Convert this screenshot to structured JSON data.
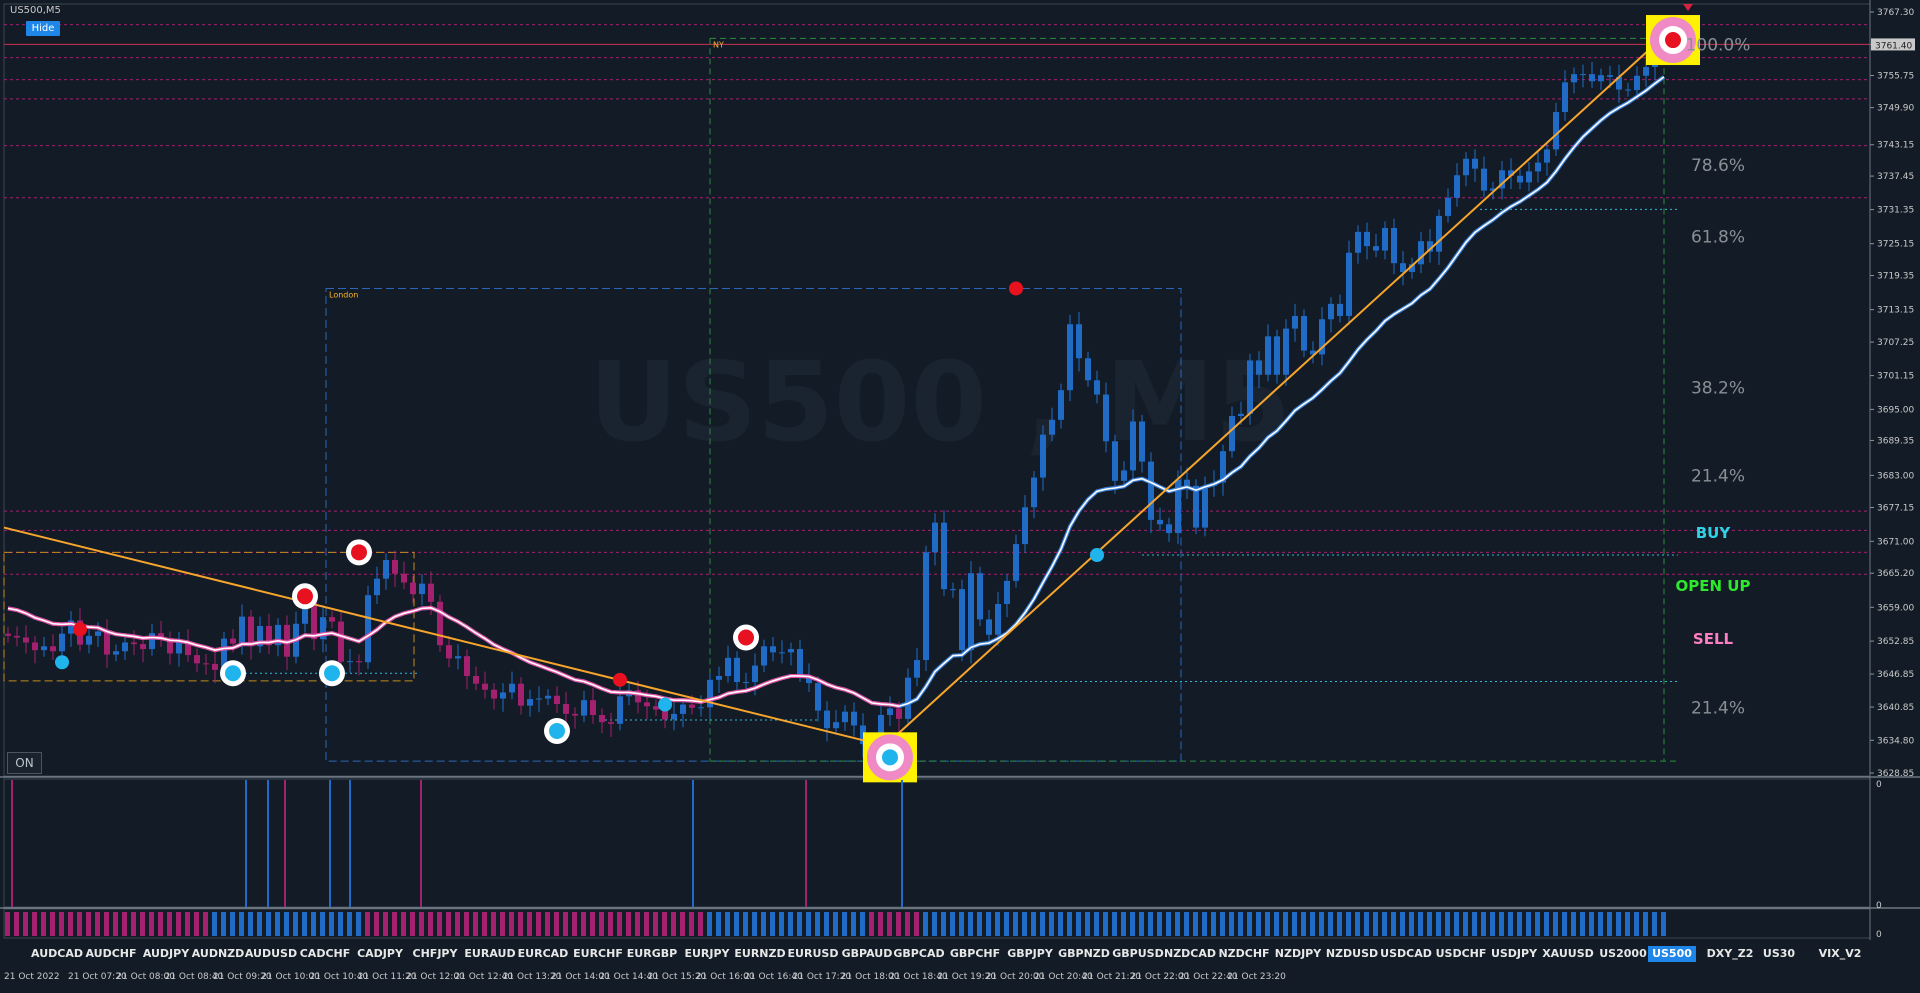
{
  "symbol_title": "US500,M5",
  "hide_label": "Hide",
  "on_label": "ON",
  "watermark": "US500 , M5",
  "session_labels": {
    "london": "London",
    "ny": "NY"
  },
  "current_price": "3761.40",
  "price_scale": [
    "3767.30",
    "3761.40",
    "3755.75",
    "3749.90",
    "3743.15",
    "3737.45",
    "3731.35",
    "3725.15",
    "3719.35",
    "3713.15",
    "3707.25",
    "3701.15",
    "3695.00",
    "3689.35",
    "3683.00",
    "3677.15",
    "3671.00",
    "3665.20",
    "3659.00",
    "3652.85",
    "3646.85",
    "3640.85",
    "3634.80",
    "3628.85"
  ],
  "fib_levels": [
    "100.0%",
    "78.6%",
    "61.8%",
    "38.2%",
    "21.4%",
    "21.4%"
  ],
  "signal_labels": {
    "buy": "BUY",
    "open_up": "OPEN UP",
    "sell": "SELL"
  },
  "sub_scale": [
    "0",
    "0",
    "0"
  ],
  "symbols": [
    "AUDCAD",
    "AUDCHF",
    "AUDJPY",
    "AUDNZD",
    "AUDUSD",
    "CADCHF",
    "CADJPY",
    "CHFJPY",
    "EURAUD",
    "EURCAD",
    "EURCHF",
    "EURGBP",
    "EURJPY",
    "EURNZD",
    "EURUSD",
    "GBPAUD",
    "GBPCAD",
    "GBPCHF",
    "GBPJPY",
    "GBPNZD",
    "GBPUSD",
    "NZDCAD",
    "NZDCHF",
    "NZDJPY",
    "NZDUSD",
    "USDCAD",
    "USDCHF",
    "USDJPY",
    "XAUUSD",
    "US2000",
    "US500",
    "DXY_Z2",
    "US30",
    "VIX_V2"
  ],
  "active_symbol": "US500",
  "time_labels": [
    "21 Oct 2022",
    "21 Oct 07:20",
    "21 Oct 08:00",
    "21 Oct 08:40",
    "21 Oct 09:20",
    "21 Oct 10:00",
    "21 Oct 10:40",
    "21 Oct 11:20",
    "21 Oct 12:00",
    "21 Oct 12:40",
    "21 Oct 13:20",
    "21 Oct 14:00",
    "21 Oct 14:40",
    "21 Oct 15:20",
    "21 Oct 16:00",
    "21 Oct 16:40",
    "21 Oct 17:20",
    "21 Oct 18:00",
    "21 Oct 18:40",
    "21 Oct 19:20",
    "21 Oct 20:00",
    "21 Oct 20:40",
    "21 Oct 21:20",
    "21 Oct 22:00",
    "21 Oct 22:40",
    "21 Oct 23:20"
  ],
  "colors": {
    "bull": "#1f6bc6",
    "bear": "#a3216f",
    "trendline": "#f7a52c",
    "buy_text": "#2fd3e8",
    "open_up_text": "#2ee82e",
    "sell_text": "#ff7ec4",
    "active_tab": "#1e86e8",
    "target_box": "#fff200"
  },
  "chart_data": {
    "type": "candlestick",
    "title": "US500,M5",
    "ylim": [
      3628.85,
      3767.3
    ],
    "closes": [
      3653.8,
      3653.5,
      3652.6,
      3651.2,
      3651.9,
      3651.0,
      3654.2,
      3656.6,
      3652.2,
      3653.8,
      3654.6,
      3650.4,
      3651.0,
      3652.6,
      3652.3,
      3651.4,
      3654.3,
      3653.4,
      3650.6,
      3652.8,
      3650.3,
      3648.8,
      3648.7,
      3647.6,
      3653.3,
      3652.4,
      3657.3,
      3651.9,
      3655.6,
      3652.1,
      3655.8,
      3650.0,
      3656.0,
      3659.9,
      3653.2,
      3657.2,
      3656.4,
      3649.1,
      3649.2,
      3649.0,
      3661.2,
      3664.2,
      3667.6,
      3665.1,
      3663.5,
      3661.4,
      3663.3,
      3660.0,
      3652.1,
      3649.7,
      3650.1,
      3646.5,
      3645.1,
      3644.0,
      3642.4,
      3643.5,
      3645.1,
      3641.1,
      3642.3,
      3642.4,
      3642.9,
      3641.4,
      3639.6,
      3639.3,
      3642.1,
      3639.4,
      3638.1,
      3637.8,
      3642.8,
      3643.9,
      3641.7,
      3641.0,
      3640.4,
      3638.6,
      3639.6,
      3641.3,
      3640.7,
      3640.8,
      3645.8,
      3646.5,
      3649.8,
      3645.4,
      3645.4,
      3648.4,
      3651.9,
      3650.8,
      3650.8,
      3651.4,
      3646.6,
      3645.2,
      3640.2,
      3637.0,
      3638.1,
      3640.0,
      3637.5,
      3634.1,
      3633.7,
      3639.4,
      3640.6,
      3638.7,
      3646.2,
      3649.4,
      3669.0,
      3674.4,
      3662.3,
      3662.3,
      3651.2,
      3665.2,
      3656.8,
      3654.0,
      3659.6,
      3663.8,
      3670.5,
      3677.2,
      3682.6,
      3690.4,
      3693.1,
      3698.5,
      3710.5,
      3704.3,
      3700.3,
      3697.7,
      3689.2,
      3682.0,
      3683.9,
      3692.8,
      3685.5,
      3674.9,
      3674.1,
      3672.5,
      3682.2,
      3681.1,
      3673.5,
      3681.1,
      3681.7,
      3687.4,
      3693.8,
      3694.2,
      3703.9,
      3701.3,
      3708.3,
      3701.3,
      3709.7,
      3712.0,
      3705.7,
      3705.0,
      3711.4,
      3714.2,
      3712.0,
      3723.5,
      3727.3,
      3724.7,
      3723.9,
      3728.0,
      3721.6,
      3720.0,
      3721.4,
      3725.6,
      3723.7,
      3730.2,
      3733.5,
      3737.6,
      3740.6,
      3738.8,
      3734.8,
      3735.2,
      3738.5,
      3737.5,
      3736.3,
      3738.3,
      3739.9,
      3742.3,
      3749.1,
      3754.5,
      3756.0,
      3756.0,
      3754.7,
      3755.8,
      3755.5,
      3753.2,
      3753.1,
      3755.7,
      3757.3,
      3760.6,
      3761.6
    ],
    "ma_line": [
      3658.8,
      3658.5,
      3657.9,
      3657.1,
      3656.6,
      3656.0,
      3655.9,
      3656.0,
      3655.6,
      3655.4,
      3655.3,
      3654.6,
      3654.1,
      3653.9,
      3653.7,
      3653.4,
      3653.5,
      3653.4,
      3653.0,
      3652.9,
      3652.6,
      3652.1,
      3651.7,
      3651.2,
      3651.5,
      3651.6,
      3652.3,
      3652.3,
      3652.6,
      3652.6,
      3652.9,
      3652.6,
      3653.1,
      3653.9,
      3653.8,
      3654.1,
      3654.3,
      3653.8,
      3653.3,
      3652.8,
      3653.8,
      3654.9,
      3656.3,
      3657.3,
      3657.9,
      3658.3,
      3658.8,
      3658.9,
      3658.2,
      3657.2,
      3656.4,
      3655.4,
      3654.3,
      3653.3,
      3652.2,
      3651.4,
      3650.7,
      3649.8,
      3649.0,
      3648.4,
      3647.8,
      3647.2,
      3646.5,
      3645.8,
      3645.5,
      3644.9,
      3644.2,
      3643.6,
      3643.5,
      3643.5,
      3643.3,
      3643.0,
      3642.8,
      3642.4,
      3642.1,
      3642.1,
      3642.0,
      3641.8,
      3642.2,
      3642.6,
      3643.3,
      3643.6,
      3643.8,
      3644.3,
      3645.0,
      3645.6,
      3646.1,
      3646.5,
      3646.5,
      3646.4,
      3645.8,
      3645.0,
      3644.4,
      3644.0,
      3643.4,
      3642.5,
      3641.6,
      3641.4,
      3641.3,
      3641.0,
      3641.5,
      3642.3,
      3644.6,
      3647.3,
      3648.8,
      3650.2,
      3650.3,
      3651.7,
      3652.3,
      3652.5,
      3653.3,
      3654.3,
      3655.9,
      3658.0,
      3660.5,
      3663.5,
      3666.4,
      3669.6,
      3673.7,
      3676.5,
      3678.6,
      3680.1,
      3680.5,
      3680.7,
      3681.0,
      3682.1,
      3682.4,
      3681.7,
      3680.9,
      3680.1,
      3680.5,
      3680.9,
      3680.3,
      3680.9,
      3681.4,
      3682.2,
      3683.5,
      3684.6,
      3686.5,
      3688.0,
      3689.9,
      3691.1,
      3692.9,
      3694.8,
      3696.0,
      3697.1,
      3698.6,
      3700.2,
      3701.6,
      3703.7,
      3705.9,
      3707.7,
      3709.3,
      3711.1,
      3712.3,
      3713.3,
      3714.3,
      3715.8,
      3716.9,
      3718.8,
      3720.8,
      3723.1,
      3725.4,
      3727.2,
      3728.4,
      3729.5,
      3730.8,
      3731.9,
      3732.8,
      3733.9,
      3735.0,
      3736.3,
      3738.3,
      3740.6,
      3742.7,
      3744.6,
      3746.1,
      3747.6,
      3748.9,
      3749.9,
      3750.8,
      3751.9,
      3753.0,
      3754.3,
      3755.5
    ],
    "trendlines": [
      {
        "from": [
          0,
          3673.5
        ],
        "to": [
          97,
          3634.0
        ]
      },
      {
        "from": [
          98,
          3634.0
        ],
        "to": [
          183,
          3761.4
        ]
      }
    ],
    "fib_levels": [
      {
        "label": "100.0%",
        "price": 3761.4
      },
      {
        "label": "78.6%",
        "price": 3739.5
      },
      {
        "label": "61.8%",
        "price": 3726.5
      },
      {
        "label": "38.2%",
        "price": 3699.0
      },
      {
        "label": "21.4%",
        "price": 3683.0
      },
      {
        "label": "21.4%",
        "price": 3640.8
      }
    ],
    "markers": [
      {
        "bar": 8,
        "price": 3655.0,
        "kind": "red-dot"
      },
      {
        "bar": 6,
        "price": 3649.0,
        "kind": "blue-dot"
      },
      {
        "bar": 25,
        "price": 3647.0,
        "kind": "blue-ring"
      },
      {
        "bar": 33,
        "price": 3661.0,
        "kind": "red-ring"
      },
      {
        "bar": 36,
        "price": 3647.0,
        "kind": "blue-ring"
      },
      {
        "bar": 39,
        "price": 3669.0,
        "kind": "red-ring"
      },
      {
        "bar": 61,
        "price": 3636.5,
        "kind": "blue-ring"
      },
      {
        "bar": 68,
        "price": 3645.8,
        "kind": "red-dot"
      },
      {
        "bar": 73,
        "price": 3641.3,
        "kind": "blue-dot"
      },
      {
        "bar": 82,
        "price": 3653.5,
        "kind": "red-ring"
      },
      {
        "bar": 98,
        "price": 3631.7,
        "kind": "target-blue"
      },
      {
        "bar": 112,
        "price": 3717.0,
        "kind": "red-dot"
      },
      {
        "bar": 121,
        "price": 3668.5,
        "kind": "blue-dot"
      },
      {
        "bar": 185,
        "price": 3762.2,
        "kind": "target-red"
      }
    ]
  }
}
